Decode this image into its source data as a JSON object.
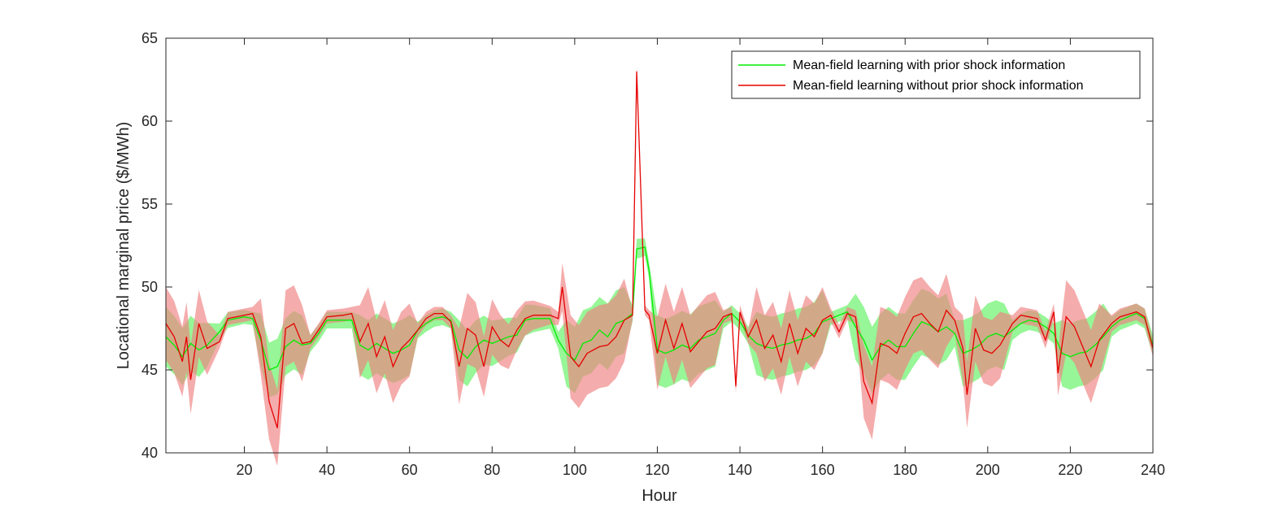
{
  "chart_data": {
    "type": "line",
    "title": "",
    "xlabel": "Hour",
    "ylabel": "Locational marginal price ($/MWh)",
    "xlim": [
      1,
      240
    ],
    "ylim": [
      40,
      65
    ],
    "xticks": [
      20,
      40,
      60,
      80,
      100,
      120,
      140,
      160,
      180,
      200,
      220,
      240
    ],
    "yticks": [
      40,
      45,
      50,
      55,
      60,
      65
    ],
    "grid": false,
    "legend_position": "top-right",
    "series": [
      {
        "name": "Mean-field learning with prior shock information",
        "color": "#00ee00",
        "band_color": "#8cf58c",
        "points": [
          [
            1,
            47
          ],
          [
            3,
            46.5
          ],
          [
            5,
            45.8
          ],
          [
            7,
            46.6
          ],
          [
            9,
            46.2
          ],
          [
            11,
            46.5
          ],
          [
            14,
            47.3
          ],
          [
            16,
            48.0
          ],
          [
            20,
            48.2
          ],
          [
            22,
            48.1
          ],
          [
            24,
            46.8
          ],
          [
            26,
            45.0
          ],
          [
            28,
            45.2
          ],
          [
            30,
            46.4
          ],
          [
            32,
            46.8
          ],
          [
            34,
            46.5
          ],
          [
            36,
            46.6
          ],
          [
            38,
            47.2
          ],
          [
            40,
            48.0
          ],
          [
            44,
            48.0
          ],
          [
            46,
            48.0
          ],
          [
            48,
            46.5
          ],
          [
            50,
            46.2
          ],
          [
            52,
            46.6
          ],
          [
            54,
            46.3
          ],
          [
            56,
            46.0
          ],
          [
            58,
            46.2
          ],
          [
            60,
            46.5
          ],
          [
            62,
            47.4
          ],
          [
            64,
            47.8
          ],
          [
            66,
            48.1
          ],
          [
            68,
            48.2
          ],
          [
            70,
            48.0
          ],
          [
            72,
            46.2
          ],
          [
            74,
            45.7
          ],
          [
            76,
            46.4
          ],
          [
            78,
            46.8
          ],
          [
            80,
            46.6
          ],
          [
            82,
            46.8
          ],
          [
            84,
            47.0
          ],
          [
            86,
            47.1
          ],
          [
            88,
            48.0
          ],
          [
            90,
            48.1
          ],
          [
            94,
            48.1
          ],
          [
            96,
            46.8
          ],
          [
            98,
            46.0
          ],
          [
            100,
            45.6
          ],
          [
            102,
            46.6
          ],
          [
            104,
            46.8
          ],
          [
            106,
            47.4
          ],
          [
            108,
            47.0
          ],
          [
            110,
            47.8
          ],
          [
            112,
            48.0
          ],
          [
            114,
            48.4
          ],
          [
            115,
            52.3
          ],
          [
            117,
            52.4
          ],
          [
            118,
            51.0
          ],
          [
            120,
            46.2
          ],
          [
            122,
            46.0
          ],
          [
            124,
            46.2
          ],
          [
            126,
            46.5
          ],
          [
            128,
            46.3
          ],
          [
            130,
            46.8
          ],
          [
            132,
            47.0
          ],
          [
            134,
            47.2
          ],
          [
            136,
            48.0
          ],
          [
            138,
            48.4
          ],
          [
            140,
            47.9
          ],
          [
            142,
            47.1
          ],
          [
            144,
            46.6
          ],
          [
            146,
            46.4
          ],
          [
            148,
            46.3
          ],
          [
            150,
            46.5
          ],
          [
            152,
            46.6
          ],
          [
            154,
            46.8
          ],
          [
            156,
            46.9
          ],
          [
            158,
            47.2
          ],
          [
            160,
            47.9
          ],
          [
            162,
            48.1
          ],
          [
            164,
            48.3
          ],
          [
            166,
            48.5
          ],
          [
            168,
            47.6
          ],
          [
            170,
            46.8
          ],
          [
            172,
            45.6
          ],
          [
            174,
            46.4
          ],
          [
            176,
            46.8
          ],
          [
            178,
            46.4
          ],
          [
            180,
            46.4
          ],
          [
            182,
            47.2
          ],
          [
            184,
            47.9
          ],
          [
            186,
            47.7
          ],
          [
            188,
            47.3
          ],
          [
            190,
            47.6
          ],
          [
            192,
            47.2
          ],
          [
            194,
            46.0
          ],
          [
            196,
            46.2
          ],
          [
            198,
            46.5
          ],
          [
            200,
            47.0
          ],
          [
            202,
            47.2
          ],
          [
            204,
            47.0
          ],
          [
            206,
            47.4
          ],
          [
            208,
            47.8
          ],
          [
            210,
            48.0
          ],
          [
            212,
            47.9
          ],
          [
            214,
            47.6
          ],
          [
            216,
            47.2
          ],
          [
            218,
            46.0
          ],
          [
            220,
            45.8
          ],
          [
            222,
            46.0
          ],
          [
            224,
            46.1
          ],
          [
            226,
            46.5
          ],
          [
            228,
            47.0
          ],
          [
            230,
            47.6
          ],
          [
            232,
            48.0
          ],
          [
            236,
            48.4
          ],
          [
            238,
            48.1
          ],
          [
            240,
            46.5
          ]
        ],
        "band_halfwidth": [
          [
            1,
            1.8
          ],
          [
            10,
            1.6
          ],
          [
            14,
            0.5
          ],
          [
            22,
            0.4
          ],
          [
            24,
            1.6
          ],
          [
            34,
            1.8
          ],
          [
            36,
            0.5
          ],
          [
            46,
            0.5
          ],
          [
            48,
            1.8
          ],
          [
            60,
            1.8
          ],
          [
            62,
            0.5
          ],
          [
            70,
            0.5
          ],
          [
            72,
            1.8
          ],
          [
            96,
            0.5
          ],
          [
            98,
            2.0
          ],
          [
            112,
            2.0
          ],
          [
            114,
            0.5
          ],
          [
            115,
            0.6
          ],
          [
            118,
            0.5
          ],
          [
            120,
            2.1
          ],
          [
            134,
            2.0
          ],
          [
            136,
            0.5
          ],
          [
            142,
            0.5
          ],
          [
            144,
            1.9
          ],
          [
            160,
            1.9
          ],
          [
            162,
            0.4
          ],
          [
            166,
            0.4
          ],
          [
            168,
            2.0
          ],
          [
            190,
            2.0
          ],
          [
            192,
            0.8
          ],
          [
            194,
            2.0
          ],
          [
            204,
            2.0
          ],
          [
            206,
            0.6
          ],
          [
            216,
            0.6
          ],
          [
            218,
            2.0
          ],
          [
            228,
            2.0
          ],
          [
            230,
            0.6
          ],
          [
            240,
            0.6
          ]
        ]
      },
      {
        "name": "Mean-field learning without prior shock information",
        "color": "#e60000",
        "band_color": "#f08080",
        "points": [
          [
            1,
            47.8
          ],
          [
            3,
            47.0
          ],
          [
            5,
            45.5
          ],
          [
            6,
            47.0
          ],
          [
            7,
            44.4
          ],
          [
            9,
            47.8
          ],
          [
            11,
            46.3
          ],
          [
            14,
            46.7
          ],
          [
            16,
            48.1
          ],
          [
            20,
            48.3
          ],
          [
            22,
            48.4
          ],
          [
            24,
            47.0
          ],
          [
            26,
            43.1
          ],
          [
            28,
            41.5
          ],
          [
            30,
            47.5
          ],
          [
            32,
            47.8
          ],
          [
            34,
            46.6
          ],
          [
            36,
            46.7
          ],
          [
            38,
            47.4
          ],
          [
            40,
            48.2
          ],
          [
            44,
            48.3
          ],
          [
            46,
            48.4
          ],
          [
            48,
            46.7
          ],
          [
            50,
            47.8
          ],
          [
            52,
            45.8
          ],
          [
            54,
            47.0
          ],
          [
            56,
            45.2
          ],
          [
            58,
            46.3
          ],
          [
            60,
            46.8
          ],
          [
            62,
            47.4
          ],
          [
            64,
            48.1
          ],
          [
            66,
            48.4
          ],
          [
            68,
            48.4
          ],
          [
            70,
            47.9
          ],
          [
            72,
            45.2
          ],
          [
            74,
            47.5
          ],
          [
            76,
            47.1
          ],
          [
            78,
            45.2
          ],
          [
            80,
            47.6
          ],
          [
            82,
            46.8
          ],
          [
            84,
            46.4
          ],
          [
            86,
            47.4
          ],
          [
            88,
            48.1
          ],
          [
            90,
            48.3
          ],
          [
            94,
            48.3
          ],
          [
            96,
            48.1
          ],
          [
            97,
            50.0
          ],
          [
            99,
            45.8
          ],
          [
            101,
            45.2
          ],
          [
            103,
            46.0
          ],
          [
            106,
            46.4
          ],
          [
            108,
            46.5
          ],
          [
            110,
            47.0
          ],
          [
            112,
            48.0
          ],
          [
            114,
            48.3
          ],
          [
            115,
            63.0
          ],
          [
            117,
            48.6
          ],
          [
            118,
            48.3
          ],
          [
            120,
            46.0
          ],
          [
            122,
            48.0
          ],
          [
            124,
            46.3
          ],
          [
            126,
            47.8
          ],
          [
            128,
            46.1
          ],
          [
            130,
            46.7
          ],
          [
            132,
            47.3
          ],
          [
            134,
            47.5
          ],
          [
            136,
            48.2
          ],
          [
            138,
            48.4
          ],
          [
            139,
            44.0
          ],
          [
            140,
            48.5
          ],
          [
            142,
            47.0
          ],
          [
            144,
            48.0
          ],
          [
            146,
            46.3
          ],
          [
            148,
            47.1
          ],
          [
            150,
            45.5
          ],
          [
            152,
            47.8
          ],
          [
            154,
            46.0
          ],
          [
            156,
            47.5
          ],
          [
            158,
            47.0
          ],
          [
            160,
            48.0
          ],
          [
            162,
            48.3
          ],
          [
            164,
            47.3
          ],
          [
            166,
            48.4
          ],
          [
            168,
            48.2
          ],
          [
            170,
            44.3
          ],
          [
            172,
            43.0
          ],
          [
            174,
            46.6
          ],
          [
            176,
            46.4
          ],
          [
            178,
            46.0
          ],
          [
            180,
            47.2
          ],
          [
            182,
            48.2
          ],
          [
            184,
            48.4
          ],
          [
            186,
            47.8
          ],
          [
            188,
            47.3
          ],
          [
            190,
            48.6
          ],
          [
            192,
            48.0
          ],
          [
            194,
            46.3
          ],
          [
            195,
            43.5
          ],
          [
            197,
            47.5
          ],
          [
            199,
            46.2
          ],
          [
            201,
            46.0
          ],
          [
            203,
            46.5
          ],
          [
            206,
            47.8
          ],
          [
            208,
            48.3
          ],
          [
            210,
            48.2
          ],
          [
            212,
            48.1
          ],
          [
            214,
            46.8
          ],
          [
            216,
            48.5
          ],
          [
            217,
            44.8
          ],
          [
            219,
            48.2
          ],
          [
            221,
            47.6
          ],
          [
            223,
            46.4
          ],
          [
            225,
            45.2
          ],
          [
            227,
            46.8
          ],
          [
            230,
            47.8
          ],
          [
            232,
            48.2
          ],
          [
            236,
            48.5
          ],
          [
            238,
            48.2
          ],
          [
            240,
            46.3
          ]
        ],
        "band_halfwidth": [
          [
            1,
            2.2
          ],
          [
            10,
            2.0
          ],
          [
            14,
            0.4
          ],
          [
            22,
            0.4
          ],
          [
            24,
            2.3
          ],
          [
            34,
            2.3
          ],
          [
            36,
            0.4
          ],
          [
            46,
            0.4
          ],
          [
            48,
            2.2
          ],
          [
            60,
            2.2
          ],
          [
            62,
            0.4
          ],
          [
            70,
            0.4
          ],
          [
            72,
            2.3
          ],
          [
            96,
            0.4
          ],
          [
            98,
            2.5
          ],
          [
            112,
            2.5
          ],
          [
            114,
            0.3
          ],
          [
            118,
            0.3
          ],
          [
            120,
            2.2
          ],
          [
            134,
            2.2
          ],
          [
            136,
            0.4
          ],
          [
            142,
            0.4
          ],
          [
            144,
            2.0
          ],
          [
            160,
            2.0
          ],
          [
            162,
            0.4
          ],
          [
            168,
            0.4
          ],
          [
            170,
            2.2
          ],
          [
            190,
            2.2
          ],
          [
            192,
            0.8
          ],
          [
            194,
            2.0
          ],
          [
            204,
            2.0
          ],
          [
            206,
            0.5
          ],
          [
            216,
            0.5
          ],
          [
            218,
            2.2
          ],
          [
            228,
            2.2
          ],
          [
            230,
            0.5
          ],
          [
            240,
            0.5
          ]
        ]
      }
    ]
  }
}
